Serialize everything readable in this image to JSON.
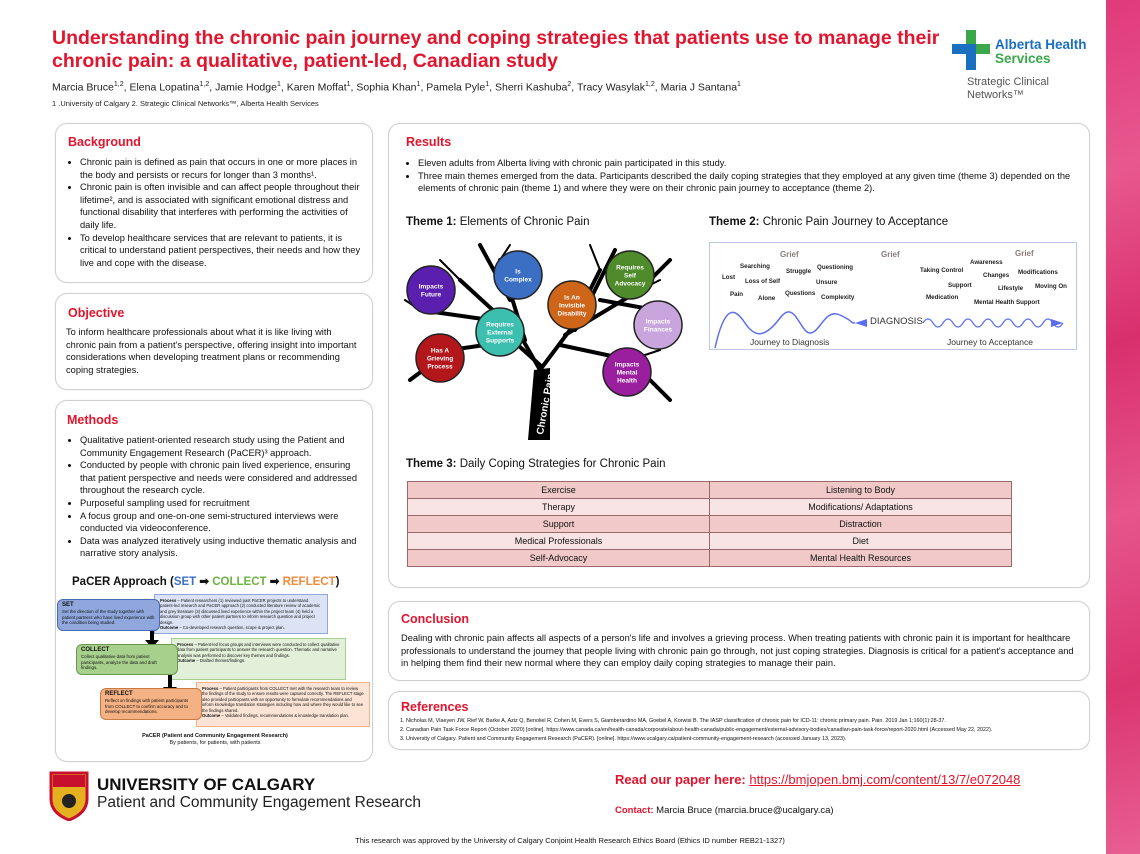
{
  "header": {
    "title": "Understanding the chronic pain journey and coping strategies that patients use to manage their chronic pain: a qualitative, patient-led, Canadian study",
    "authors": [
      {
        "name": "Marcia Bruce",
        "aff": "1,2"
      },
      {
        "name": "Elena Lopatina",
        "aff": "1,2"
      },
      {
        "name": "Jamie Hodge",
        "aff": "1"
      },
      {
        "name": "Karen Moffat",
        "aff": "1"
      },
      {
        "name": "Sophia Khan",
        "aff": "1"
      },
      {
        "name": "Pamela Pyle",
        "aff": "1"
      },
      {
        "name": "Sherri Kashuba",
        "aff": "2"
      },
      {
        "name": "Tracy Wasylak",
        "aff": "1,2"
      },
      {
        "name": "Maria J Santana",
        "aff": "1"
      }
    ],
    "affiliations": "1 .University of Calgary  2. Strategic Clinical Networks™, Alberta Health Services",
    "logo": {
      "line1": "Alberta Health",
      "line2": "Services",
      "sub1": "Strategic Clinical",
      "sub2": "Networks™"
    }
  },
  "background": {
    "heading": "Background",
    "bullets": [
      "Chronic pain is defined as pain that occurs in one or more places in the body and persists or recurs for longer than 3 months¹.",
      "Chronic pain is often invisible and can affect people throughout their lifetime², and is associated with significant emotional distress and functional disability that interferes with performing the activities of daily life.",
      "To develop healthcare services that are relevant to patients, it is critical to understand patient perspectives, their needs and how they live and cope with the disease."
    ]
  },
  "objective": {
    "heading": "Objective",
    "text": "To inform healthcare professionals about what it is like living with chronic pain from a patient's perspective, offering insight into important considerations when developing treatment plans or recommending coping strategies."
  },
  "methods": {
    "heading": "Methods",
    "bullets": [
      "Qualitative patient-oriented research study using the Patient and Community Engagement Research (PaCER)³ approach.",
      "Conducted by people with chronic pain lived experience, ensuring that patient perspective and needs were considered and addressed throughout the research cycle.",
      "Purposeful sampling used for recruitment",
      "A focus group and one-on-one semi-structured interviews were conducted via videoconference.",
      "Data was analyzed iteratively using inductive thematic analysis and narrative story analysis."
    ],
    "pacer": {
      "title": "PaCER Approach (",
      "set": "SET",
      "arrow": " ➡ ",
      "collect": "COLLECT",
      "reflect": "REFLECT",
      "close": ")",
      "stages": [
        {
          "name": "SET",
          "desc": "Set the direction of the study together with patient partners who have lived experience with the condition being studied.",
          "process": "Patient researchers (1) reviewed past PaCER projects to understand patient-led research and PaCER approach (2) conducted literature review of academic and grey literature (3) discussed lived experience within the project team (4) held a discussion group with other patient partners to inform research question and project design.",
          "outcome": "Co-developed research question, scope & project plan."
        },
        {
          "name": "COLLECT",
          "desc": "Collect qualitative data from patient participants, analyze the data and draft findings.",
          "process": "Patient-led focus groups and interviews were conducted to collect qualitative data from patient participants to answer the research question. Thematic and narrative analysis was performed to discover key themes and findings.",
          "outcome": "Drafted themes/findings."
        },
        {
          "name": "REFLECT",
          "desc": "Reflect on findings with patient participants from COLLECT to confirm accuracy and to develop recommendations.",
          "process": "Patient participants from COLLECT met with the research team to review the findings of the study to ensure results were captured correctly. The REFLECT stage also provided participants with an opportunity to formulate recommendations and inform knowledge translation strategies including how and where they would like to see the findings shared.",
          "outcome": "Validated findings, recommendations & knowledge translation plan."
        }
      ],
      "process_label": "Process",
      "outcome_label": "Outcome",
      "caption": "PaCER (Patient and Community Engagement Research)",
      "tagline": "By patients, for patients, with patients"
    }
  },
  "results": {
    "heading": "Results",
    "bullets": [
      "Eleven adults from Alberta living with chronic pain participated in this study.",
      "Three main themes emerged from the data. Participants described the daily coping strategies that they employed at any given time (theme 3) depended on the elements of chronic pain (theme 1) and where they were on their chronic pain journey to acceptance (theme 2)."
    ],
    "theme1": {
      "label": "Theme 1:",
      "title": "Elements of Chronic Pain",
      "trunk": "Chronic Pain...",
      "elements": [
        {
          "lines": [
            "Impacts",
            "Future"
          ],
          "color": "#5a1fae"
        },
        {
          "lines": [
            "Is",
            "Complex"
          ],
          "color": "#3b6fc4"
        },
        {
          "lines": [
            "Requires",
            "Self",
            "Advocacy"
          ],
          "color": "#4f8a2b"
        },
        {
          "lines": [
            "Is An",
            "Invisible",
            "Disability"
          ],
          "color": "#cf6519"
        },
        {
          "lines": [
            "Requires",
            "External",
            "Supports"
          ],
          "color": "#3cbfae"
        },
        {
          "lines": [
            "Impacts",
            "Finances"
          ],
          "color": "#c9a5dd"
        },
        {
          "lines": [
            "Has A",
            "Grieving",
            "Process"
          ],
          "color": "#b3161b"
        },
        {
          "lines": [
            "Impacts",
            "Mental",
            "Health"
          ],
          "color": "#9a1f9f"
        }
      ]
    },
    "theme2": {
      "label": "Theme 2:",
      "title": "Chronic Pain Journey to Acceptance",
      "grief": "Grief",
      "diagnosis": "DIAGNOSIS",
      "journey1": "Journey to Diagnosis",
      "journey2": "Journey to Acceptance",
      "before": [
        "Searching",
        "Lost",
        "Loss of Self",
        "Pain",
        "Alone",
        "Struggle",
        "Questions",
        "Questioning",
        "Unsure",
        "Complexity"
      ],
      "after": [
        "Taking Control",
        "Awareness",
        "Changes",
        "Modifications",
        "Support",
        "Lifestyle",
        "Moving On",
        "Medication",
        "Mental Health Support"
      ]
    },
    "theme3": {
      "label": "Theme 3:",
      "title": "Daily Coping Strategies for Chronic Pain",
      "rows": [
        [
          "Exercise",
          "Listening to Body"
        ],
        [
          "Therapy",
          "Modifications/ Adaptations"
        ],
        [
          "Support",
          "Distraction"
        ],
        [
          "Medical Professionals",
          "Diet"
        ],
        [
          "Self-Advocacy",
          "Mental Health Resources"
        ]
      ]
    }
  },
  "conclusion": {
    "heading": "Conclusion",
    "text": "Dealing with chronic pain affects all aspects of a person's life and involves a grieving process. When treating patients with chronic pain it is important for healthcare professionals to understand the journey that people living with chronic pain go through, not just coping strategies. Diagnosis is critical for a patient's acceptance and in helping them find their new normal where they can employ daily coping strategies to manage their pain."
  },
  "references": {
    "heading": "References",
    "items": [
      "1.   Nicholas M, Vlaeyen JW, Rief W, Barke A, Aziz Q, Benoliel R, Cohen M, Evers S, Giamberardino MA, Goebel A, Korwisi B. The IASP classification of chronic pain for ICD-11: chronic primary pain. Pain. 2019 Jan 1;160(1):28-37.",
      "2.   Canadian Pain Task Force Report (October 2020) [online]. https://www.canada.ca/en/health-canada/corporate/about-health-canada/public-engagement/external-advisory-bodies/canadian-pain-task-force/report-2020.html (Accessed May 22, 2022).",
      "3.   University of Calgary. Patient and Community Engagement Research (PaCER). [online]. https://www.ucalgary.ca/patient-community-engagement-research (accessed January 13, 2023)."
    ]
  },
  "footer": {
    "uc_name": "UNIVERSITY OF CALGARY",
    "uc_sub": "Patient and Community Engagement Research",
    "paper_label": "Read our paper here:",
    "paper_url": "https://bmjopen.bmj.com/content/13/7/e072048",
    "contact_label": "Contact:",
    "contact_value": "Marcia Bruce (marcia.bruce@ucalgary.ca)",
    "ethics": "This research was approved by the University of Calgary Conjoint Health Research Ethics Board (Ethics ID number REB21-1327)"
  },
  "colors": {
    "accent": "#e3142d",
    "strip": "#e03a7a",
    "table_odd": "#f1c9c9",
    "table_even": "#f8e4e4",
    "set": "#8fa7dc",
    "collect": "#a8d08d",
    "reflect": "#f4b183"
  }
}
